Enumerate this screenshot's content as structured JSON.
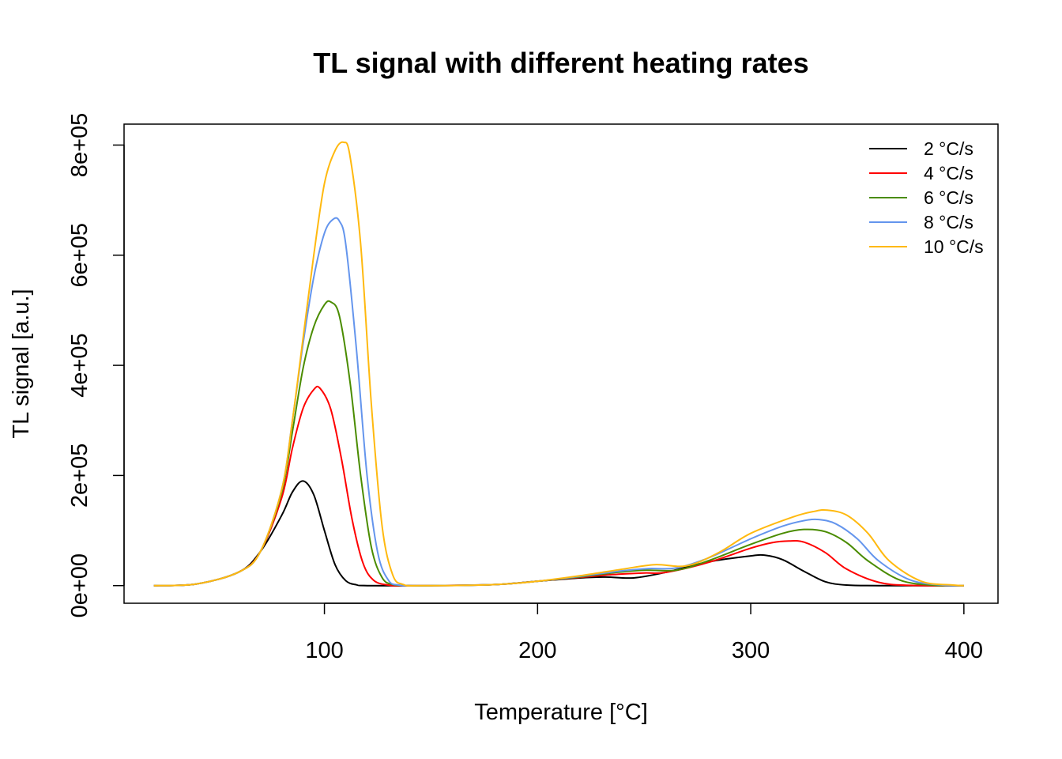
{
  "chart_data": {
    "type": "line",
    "title": "TL signal with different heating rates",
    "xlabel": "Temperature [°C]",
    "ylabel": "TL signal [a.u.]",
    "xlim": [
      6,
      416
    ],
    "ylim": [
      -32000,
      838000
    ],
    "x_ticks": [
      100,
      200,
      300,
      400
    ],
    "x_tick_labels": [
      "100",
      "200",
      "300",
      "400"
    ],
    "y_ticks": [
      0,
      200000,
      400000,
      600000,
      800000
    ],
    "y_tick_labels": [
      "0e+00",
      "2e+05",
      "4e+05",
      "6e+05",
      "8e+05"
    ],
    "grid": false,
    "legend_position": "top-right",
    "series": [
      {
        "name": "2 °C/s",
        "color": "#000000",
        "x": [
          20,
          40,
          60,
          70,
          80,
          85,
          90,
          95,
          100,
          105,
          110,
          115,
          120,
          150,
          180,
          200,
          220,
          232,
          245,
          260,
          280,
          300,
          307,
          315,
          325,
          335,
          345,
          360,
          400
        ],
        "y": [
          0,
          3000,
          25000,
          62000,
          128000,
          170000,
          190000,
          165000,
          100000,
          38000,
          9000,
          1500,
          0,
          0,
          2000,
          8000,
          14000,
          15500,
          14000,
          24000,
          43000,
          54000,
          55000,
          47000,
          26000,
          7000,
          1000,
          0,
          0
        ]
      },
      {
        "name": "4 °C/s",
        "color": "#ff0000",
        "x": [
          20,
          40,
          60,
          70,
          80,
          85,
          90,
          95,
          98,
          103,
          108,
          113,
          118,
          123,
          130,
          140,
          180,
          200,
          220,
          235,
          250,
          260,
          280,
          300,
          310,
          318,
          325,
          335,
          345,
          360,
          375,
          400
        ],
        "y": [
          0,
          3000,
          25000,
          62000,
          160000,
          250000,
          322000,
          356000,
          358000,
          320000,
          230000,
          120000,
          42000,
          10000,
          1000,
          0,
          2000,
          8000,
          15000,
          20000,
          23000,
          24000,
          42000,
          68000,
          78000,
          81000,
          79000,
          60000,
          30000,
          6000,
          500,
          0
        ]
      },
      {
        "name": "6 °C/s",
        "color": "#4a8c00",
        "x": [
          20,
          40,
          60,
          70,
          80,
          85,
          90,
          95,
          100,
          103,
          107,
          112,
          117,
          122,
          127,
          132,
          140,
          150,
          180,
          200,
          220,
          237,
          250,
          265,
          280,
          300,
          315,
          325,
          335,
          345,
          355,
          370,
          385,
          400
        ],
        "y": [
          0,
          3000,
          25000,
          62000,
          170000,
          280000,
          395000,
          470000,
          510000,
          515000,
          490000,
          370000,
          200000,
          70000,
          15000,
          2000,
          0,
          0,
          2000,
          8000,
          16000,
          24000,
          28000,
          28000,
          45000,
          75000,
          95000,
          102000,
          98000,
          78000,
          45000,
          10000,
          1000,
          0
        ]
      },
      {
        "name": "8 °C/s",
        "color": "#6495ed",
        "x": [
          20,
          40,
          60,
          70,
          80,
          85,
          90,
          95,
          100,
          104,
          107,
          110,
          115,
          120,
          125,
          130,
          135,
          145,
          180,
          200,
          220,
          240,
          252,
          265,
          280,
          300,
          315,
          325,
          332,
          340,
          350,
          360,
          375,
          390,
          400
        ],
        "y": [
          0,
          3000,
          25000,
          62000,
          175000,
          300000,
          440000,
          560000,
          640000,
          665000,
          662000,
          620000,
          430000,
          200000,
          60000,
          10000,
          1000,
          0,
          2000,
          8000,
          17000,
          27000,
          31000,
          32000,
          50000,
          85000,
          108000,
          118000,
          120000,
          112000,
          85000,
          45000,
          10000,
          1000,
          0
        ]
      },
      {
        "name": "10 °C/s",
        "color": "#ffb90f",
        "x": [
          20,
          40,
          60,
          70,
          80,
          85,
          90,
          95,
          100,
          105,
          109,
          112,
          117,
          122,
          127,
          132,
          137,
          145,
          180,
          200,
          220,
          240,
          255,
          270,
          285,
          300,
          320,
          330,
          336,
          345,
          355,
          365,
          380,
          395,
          400
        ],
        "y": [
          0,
          3000,
          25000,
          62000,
          175000,
          300000,
          450000,
          600000,
          730000,
          790000,
          805000,
          780000,
          620000,
          330000,
          110000,
          20000,
          2000,
          0,
          2000,
          8000,
          18000,
          30000,
          38000,
          36000,
          60000,
          95000,
          125000,
          135000,
          137000,
          128000,
          95000,
          45000,
          8000,
          1000,
          0
        ]
      }
    ]
  }
}
